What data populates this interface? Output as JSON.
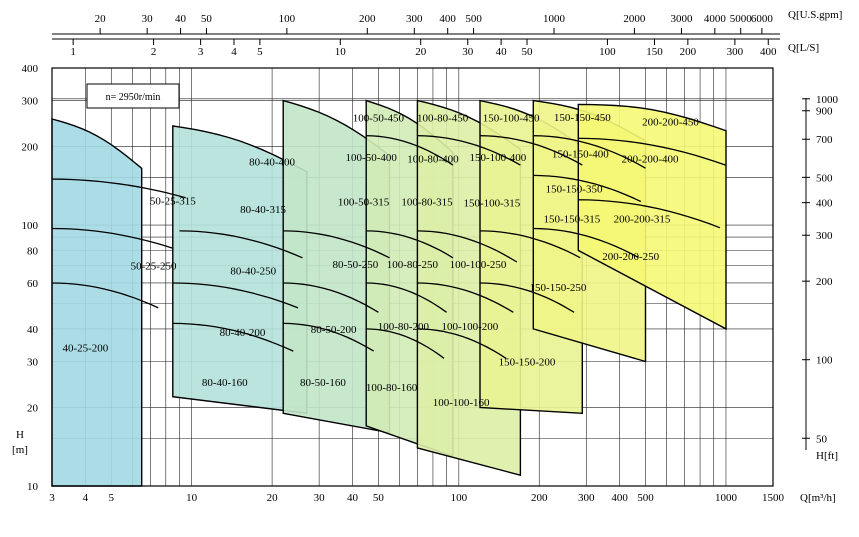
{
  "chart_data": {
    "type": "area",
    "x_scale": "log",
    "y_scale": "log",
    "xlim": [
      3,
      1500
    ],
    "ylim": [
      10,
      400
    ],
    "axes": {
      "x_bottom": {
        "label": "Q[m³/h]",
        "ticks": [
          3,
          4,
          5,
          10,
          20,
          30,
          40,
          50,
          100,
          200,
          300,
          400,
          500,
          1000,
          1500
        ]
      },
      "x_top_ls": {
        "label": "Q[L/S]",
        "ticks": [
          1,
          2,
          3,
          4,
          5,
          10,
          20,
          30,
          40,
          50,
          100,
          150,
          200,
          300,
          400
        ]
      },
      "x_top_gpm": {
        "label": "Q[U.S.gpm]",
        "ticks": [
          20,
          30,
          40,
          50,
          100,
          200,
          300,
          400,
          500,
          1000,
          2000,
          3000,
          4000,
          5000,
          6000
        ]
      },
      "y_left": {
        "label_main": "H",
        "label_unit": "[m]",
        "ticks": [
          10,
          20,
          30,
          40,
          60,
          80,
          100,
          200,
          300,
          400
        ]
      },
      "y_right": {
        "label": "H[ft]",
        "ticks": [
          50,
          100,
          200,
          300,
          400,
          500,
          700,
          900,
          1000
        ]
      }
    },
    "speed_label": "n= 2950r/min",
    "zones": [
      {
        "name": "40-25-200",
        "q": 4.0,
        "h": 34,
        "color": "#9fd8e3"
      },
      {
        "name": "50-25-250",
        "q": 7.2,
        "h": 70,
        "color": "#a6dbe2"
      },
      {
        "name": "50-25-315",
        "q": 8.5,
        "h": 124,
        "color": "#acdee2"
      },
      {
        "name": "80-40-160",
        "q": 13.3,
        "h": 25,
        "color": "#b1e1dc"
      },
      {
        "name": "80-40-200",
        "q": 15.5,
        "h": 39,
        "color": "#b1e1dc"
      },
      {
        "name": "80-40-250",
        "q": 17.0,
        "h": 67,
        "color": "#b5e2d6"
      },
      {
        "name": "80-40-315",
        "q": 18.5,
        "h": 115,
        "color": "#b5e2d6"
      },
      {
        "name": "80-40-400",
        "q": 20.0,
        "h": 175,
        "color": "#b5e2d6"
      },
      {
        "name": "80-50-160",
        "q": 31,
        "h": 25,
        "color": "#bfe5cc"
      },
      {
        "name": "80-50-200",
        "q": 34,
        "h": 40,
        "color": "#bfe5cc"
      },
      {
        "name": "80-50-250",
        "q": 41,
        "h": 71,
        "color": "#c2e6c8"
      },
      {
        "name": "100-50-315",
        "q": 44,
        "h": 123,
        "color": "#c5e7c4"
      },
      {
        "name": "100-50-400",
        "q": 47,
        "h": 182,
        "color": "#c5e7c4"
      },
      {
        "name": "100-50-450",
        "q": 50,
        "h": 258,
        "color": "#c5e7c4"
      },
      {
        "name": "100-80-160",
        "q": 56,
        "h": 24,
        "color": "#cdeab9"
      },
      {
        "name": "100-80-200",
        "q": 62,
        "h": 41,
        "color": "#cdeab9"
      },
      {
        "name": "100-80-250",
        "q": 67,
        "h": 71,
        "color": "#d1ebb5"
      },
      {
        "name": "100-80-315",
        "q": 76,
        "h": 123,
        "color": "#d4ecb1"
      },
      {
        "name": "100-80-400",
        "q": 80,
        "h": 180,
        "color": "#d4ecb1"
      },
      {
        "name": "100-80-450",
        "q": 87,
        "h": 258,
        "color": "#d4ecb1"
      },
      {
        "name": "100-100-160",
        "q": 102,
        "h": 21,
        "color": "#dcefa4"
      },
      {
        "name": "100-100-200",
        "q": 110,
        "h": 41,
        "color": "#dcefa4"
      },
      {
        "name": "100-100-250",
        "q": 118,
        "h": 71,
        "color": "#dff0a0"
      },
      {
        "name": "150-100-315",
        "q": 133,
        "h": 122,
        "color": "#e3f29b"
      },
      {
        "name": "150-100-400",
        "q": 140,
        "h": 182,
        "color": "#e3f29b"
      },
      {
        "name": "150-100-450",
        "q": 157,
        "h": 258,
        "color": "#e3f29b"
      },
      {
        "name": "150-150-200",
        "q": 180,
        "h": 30,
        "color": "#edf489"
      },
      {
        "name": "150-150-250",
        "q": 235,
        "h": 58,
        "color": "#eff585"
      },
      {
        "name": "150-150-315",
        "q": 265,
        "h": 106,
        "color": "#f1f680"
      },
      {
        "name": "150-150-350",
        "q": 270,
        "h": 138,
        "color": "#f1f680"
      },
      {
        "name": "150-150-400",
        "q": 285,
        "h": 188,
        "color": "#f1f680"
      },
      {
        "name": "150-150-450",
        "q": 290,
        "h": 260,
        "color": "#f1f680"
      },
      {
        "name": "200-200-250",
        "q": 440,
        "h": 76,
        "color": "#f6f872"
      },
      {
        "name": "200-200-315",
        "q": 485,
        "h": 106,
        "color": "#f6f872"
      },
      {
        "name": "200-200-400",
        "q": 520,
        "h": 180,
        "color": "#f6f872"
      },
      {
        "name": "200-200-450",
        "q": 620,
        "h": 250,
        "color": "#f6f872"
      }
    ]
  }
}
